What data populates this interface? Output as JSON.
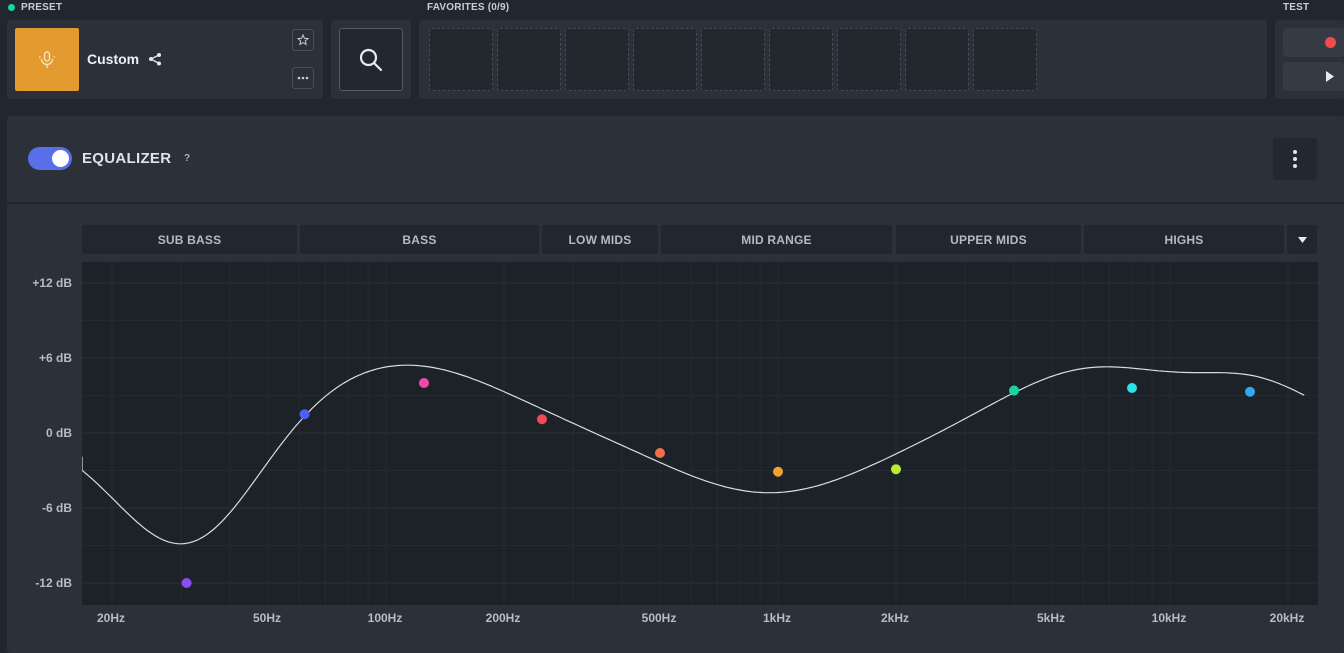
{
  "preset": {
    "section_label": "PRESET",
    "name": "Custom",
    "icon": "microphone-icon",
    "icon_bg": "#e39a2e"
  },
  "favorites": {
    "section_label": "FAVORITES (0/9)",
    "slots": 9
  },
  "test": {
    "section_label": "TEST",
    "record_color": "#f04a4a"
  },
  "equalizer": {
    "title": "EQUALIZER",
    "help": "?",
    "enabled": true,
    "accent": "#5a6ee8",
    "bands": [
      "SUB BASS",
      "BASS",
      "LOW MIDS",
      "MID RANGE",
      "UPPER MIDS",
      "HIGHS"
    ],
    "y_axis": [
      "+12 dB",
      "+6 dB",
      "0 dB",
      "-6 dB",
      "-12 dB"
    ],
    "x_axis": [
      "20Hz",
      "50Hz",
      "100Hz",
      "200Hz",
      "500Hz",
      "1kHz",
      "2kHz",
      "5kHz",
      "10kHz",
      "20kHz"
    ],
    "points": [
      {
        "freq": 31,
        "gain": -12,
        "color": "#8b4cf0"
      },
      {
        "freq": 62,
        "gain": 1.5,
        "color": "#4d5ff0"
      },
      {
        "freq": 125,
        "gain": 4.0,
        "color": "#f04aa8"
      },
      {
        "freq": 250,
        "gain": 1.1,
        "color": "#f04a55"
      },
      {
        "freq": 500,
        "gain": -1.6,
        "color": "#f0704a"
      },
      {
        "freq": 1000,
        "gain": -3.1,
        "color": "#f0a12e"
      },
      {
        "freq": 2000,
        "gain": -2.9,
        "color": "#b8f02e"
      },
      {
        "freq": 4000,
        "gain": 3.4,
        "color": "#19d3a2"
      },
      {
        "freq": 8000,
        "gain": 3.6,
        "color": "#2ee0e8"
      },
      {
        "freq": 16000,
        "gain": 3.3,
        "color": "#2ea8f0"
      }
    ]
  }
}
